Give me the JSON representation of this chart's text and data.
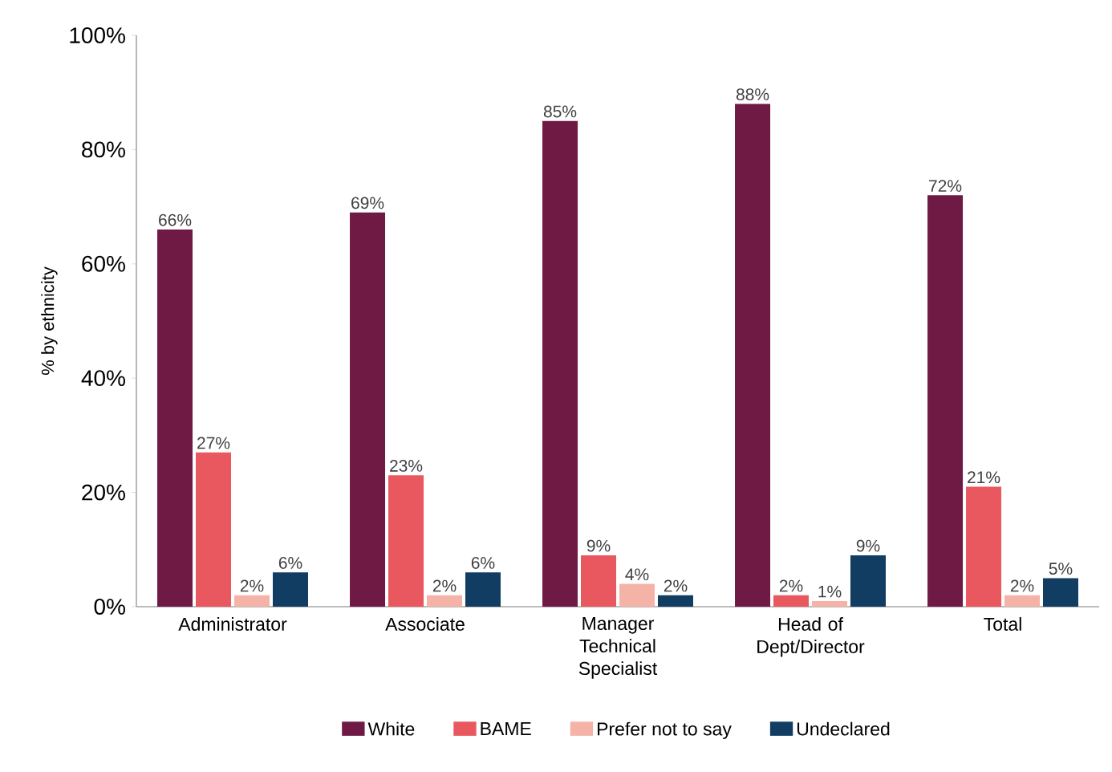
{
  "chart_data": {
    "type": "bar",
    "ylabel": "% by ethnicity",
    "categories": [
      "Administrator",
      "Associate",
      "Manager Technical Specialist",
      "Head of Dept/Director",
      "Total"
    ],
    "series": [
      {
        "name": "White",
        "color": "#6e1a45",
        "values": [
          66,
          69,
          85,
          88,
          72
        ],
        "value_labels": [
          "66%",
          "69%",
          "85%",
          "88%",
          "72%"
        ]
      },
      {
        "name": "BAME",
        "color": "#e8585e",
        "values": [
          27,
          23,
          9,
          2,
          21
        ],
        "value_labels": [
          "27%",
          "23%",
          "9%",
          "2%",
          "21%"
        ]
      },
      {
        "name": "Prefer not to say",
        "color": "#f5b3a8",
        "values": [
          2,
          2,
          4,
          1,
          2
        ],
        "value_labels": [
          "2%",
          "2%",
          "4%",
          "1%",
          "2%"
        ]
      },
      {
        "name": "Undeclared",
        "color": "#123d63",
        "values": [
          6,
          6,
          2,
          9,
          5
        ],
        "value_labels": [
          "6%",
          "6%",
          "2%",
          "9%",
          "5%"
        ]
      }
    ],
    "ylim": [
      0,
      100
    ],
    "yticks": [
      {
        "value": 0,
        "label": "0%"
      },
      {
        "value": 20,
        "label": "20%"
      },
      {
        "value": 40,
        "label": "40%"
      },
      {
        "value": 60,
        "label": "60%"
      },
      {
        "value": 80,
        "label": "80%"
      },
      {
        "value": 100,
        "label": "100%"
      }
    ],
    "grid": false,
    "legend": "bottom"
  }
}
